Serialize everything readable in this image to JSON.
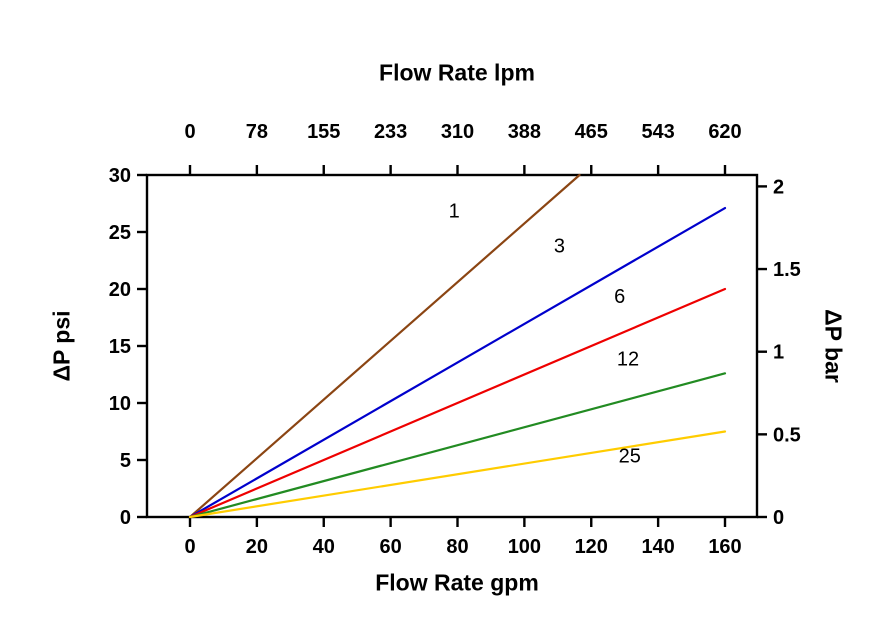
{
  "chart_data": {
    "type": "line",
    "x_axis_bottom": {
      "label": "Flow Rate gpm",
      "min": 0,
      "max": 160,
      "ticks": [
        0,
        20,
        40,
        60,
        80,
        100,
        120,
        140,
        160
      ]
    },
    "x_axis_top": {
      "label": "Flow Rate lpm",
      "ticks": [
        0,
        78,
        155,
        233,
        310,
        388,
        465,
        543,
        620
      ]
    },
    "y_axis_left": {
      "label": "ΔP psi",
      "min": 0,
      "max": 30,
      "ticks": [
        0,
        5,
        10,
        15,
        20,
        25,
        30
      ]
    },
    "y_axis_right": {
      "label": "ΔP bar",
      "ticks": [
        0,
        0.5,
        1,
        1.5,
        2
      ],
      "psi_per_bar": 14.5
    },
    "grid": false,
    "frame_color": "#000000",
    "series": [
      {
        "name": "1",
        "color": "#8B4513",
        "points": [
          [
            0,
            0
          ],
          [
            116.5,
            30
          ]
        ],
        "label_pos": {
          "gpm": 79,
          "psi": 26.9
        }
      },
      {
        "name": "3",
        "color": "#0000CC",
        "points": [
          [
            0,
            0
          ],
          [
            160,
            27.1
          ]
        ],
        "label_pos": {
          "gpm": 110.5,
          "psi": 23.8
        }
      },
      {
        "name": "6",
        "color": "#EE0000",
        "points": [
          [
            0,
            0
          ],
          [
            160,
            20
          ]
        ],
        "label_pos": {
          "gpm": 128.5,
          "psi": 19.4
        }
      },
      {
        "name": "12",
        "color": "#228B22",
        "points": [
          [
            0,
            0
          ],
          [
            160,
            12.6
          ]
        ],
        "label_pos": {
          "gpm": 131,
          "psi": 13.9
        }
      },
      {
        "name": "25",
        "color": "#FFCC00",
        "points": [
          [
            0,
            0
          ],
          [
            160,
            7.5
          ]
        ],
        "label_pos": {
          "gpm": 131.5,
          "psi": 5.4
        }
      }
    ]
  }
}
